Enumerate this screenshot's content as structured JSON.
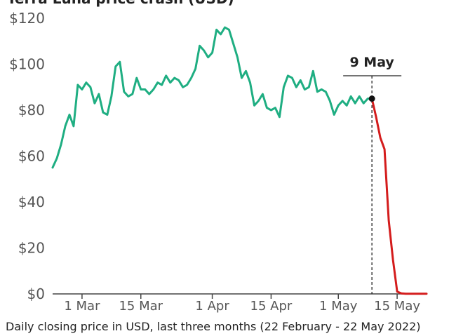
{
  "header": {
    "partial_title": "Terra Luna price crash (USD)"
  },
  "caption": "Daily closing price in USD, last three months (22 February - 22 May 2022)",
  "colors": {
    "before": "#1fae82",
    "after": "#d41c1c",
    "axis": "#444444",
    "text": "#222222"
  },
  "chart_data": {
    "type": "line",
    "title": "",
    "xlabel": "",
    "ylabel": "",
    "ylim": [
      0,
      120
    ],
    "y_ticks": [
      0,
      20,
      40,
      60,
      80,
      100,
      120
    ],
    "y_tick_labels": [
      "$0",
      "$20",
      "$40",
      "$60",
      "$80",
      "$100",
      "$120"
    ],
    "x_tick_labels": [
      {
        "date": "2022-03-01",
        "label": "1 Mar"
      },
      {
        "date": "2022-03-15",
        "label": "15 Mar"
      },
      {
        "date": "2022-04-01",
        "label": "1 Apr"
      },
      {
        "date": "2022-04-15",
        "label": "15 Apr"
      },
      {
        "date": "2022-05-01",
        "label": "1 May"
      },
      {
        "date": "2022-05-15",
        "label": "15 May"
      }
    ],
    "grid": false,
    "annotation": {
      "date": "2022-05-09",
      "label": "9 May",
      "value": 85
    },
    "series": [
      {
        "color": "#1fae82",
        "points": [
          [
            "2022-02-22",
            55
          ],
          [
            "2022-02-23",
            59
          ],
          [
            "2022-02-24",
            65
          ],
          [
            "2022-02-25",
            73
          ],
          [
            "2022-02-26",
            78
          ],
          [
            "2022-02-27",
            73
          ],
          [
            "2022-02-28",
            91
          ],
          [
            "2022-03-01",
            89
          ],
          [
            "2022-03-02",
            92
          ],
          [
            "2022-03-03",
            90
          ],
          [
            "2022-03-04",
            83
          ],
          [
            "2022-03-05",
            87
          ],
          [
            "2022-03-06",
            79
          ],
          [
            "2022-03-07",
            78
          ],
          [
            "2022-03-08",
            86
          ],
          [
            "2022-03-09",
            99
          ],
          [
            "2022-03-10",
            101
          ],
          [
            "2022-03-11",
            88
          ],
          [
            "2022-03-12",
            86
          ],
          [
            "2022-03-13",
            87
          ],
          [
            "2022-03-14",
            94
          ],
          [
            "2022-03-15",
            89
          ],
          [
            "2022-03-16",
            89
          ],
          [
            "2022-03-17",
            87
          ],
          [
            "2022-03-18",
            89
          ],
          [
            "2022-03-19",
            92
          ],
          [
            "2022-03-20",
            91
          ],
          [
            "2022-03-21",
            95
          ],
          [
            "2022-03-22",
            92
          ],
          [
            "2022-03-23",
            94
          ],
          [
            "2022-03-24",
            93
          ],
          [
            "2022-03-25",
            90
          ],
          [
            "2022-03-26",
            91
          ],
          [
            "2022-03-27",
            94
          ],
          [
            "2022-03-28",
            98
          ],
          [
            "2022-03-29",
            108
          ],
          [
            "2022-03-30",
            106
          ],
          [
            "2022-03-31",
            103
          ],
          [
            "2022-04-01",
            105
          ],
          [
            "2022-04-02",
            115
          ],
          [
            "2022-04-03",
            113
          ],
          [
            "2022-04-04",
            116
          ],
          [
            "2022-04-05",
            115
          ],
          [
            "2022-04-06",
            109
          ],
          [
            "2022-04-07",
            103
          ],
          [
            "2022-04-08",
            94
          ],
          [
            "2022-04-09",
            97
          ],
          [
            "2022-04-10",
            92
          ],
          [
            "2022-04-11",
            82
          ],
          [
            "2022-04-12",
            84
          ],
          [
            "2022-04-13",
            87
          ],
          [
            "2022-04-14",
            81
          ],
          [
            "2022-04-15",
            80
          ],
          [
            "2022-04-16",
            81
          ],
          [
            "2022-04-17",
            77
          ],
          [
            "2022-04-18",
            90
          ],
          [
            "2022-04-19",
            95
          ],
          [
            "2022-04-20",
            94
          ],
          [
            "2022-04-21",
            90
          ],
          [
            "2022-04-22",
            93
          ],
          [
            "2022-04-23",
            89
          ],
          [
            "2022-04-24",
            90
          ],
          [
            "2022-04-25",
            97
          ],
          [
            "2022-04-26",
            88
          ],
          [
            "2022-04-27",
            89
          ],
          [
            "2022-04-28",
            88
          ],
          [
            "2022-04-29",
            84
          ],
          [
            "2022-04-30",
            78
          ],
          [
            "2022-05-01",
            82
          ],
          [
            "2022-05-02",
            84
          ],
          [
            "2022-05-03",
            82
          ],
          [
            "2022-05-04",
            86
          ],
          [
            "2022-05-05",
            83
          ],
          [
            "2022-05-06",
            86
          ],
          [
            "2022-05-07",
            83
          ],
          [
            "2022-05-08",
            85
          ],
          [
            "2022-05-09",
            85
          ]
        ]
      },
      {
        "color": "#d41c1c",
        "points": [
          [
            "2022-05-09",
            85
          ],
          [
            "2022-05-10",
            77
          ],
          [
            "2022-05-11",
            68
          ],
          [
            "2022-05-12",
            63
          ],
          [
            "2022-05-13",
            32
          ],
          [
            "2022-05-14",
            15
          ],
          [
            "2022-05-15",
            1
          ],
          [
            "2022-05-16",
            0.2
          ],
          [
            "2022-05-17",
            0.1
          ],
          [
            "2022-05-18",
            0.1
          ],
          [
            "2022-05-19",
            0.1
          ],
          [
            "2022-05-20",
            0.1
          ],
          [
            "2022-05-21",
            0.1
          ],
          [
            "2022-05-22",
            0.1
          ]
        ]
      }
    ]
  }
}
